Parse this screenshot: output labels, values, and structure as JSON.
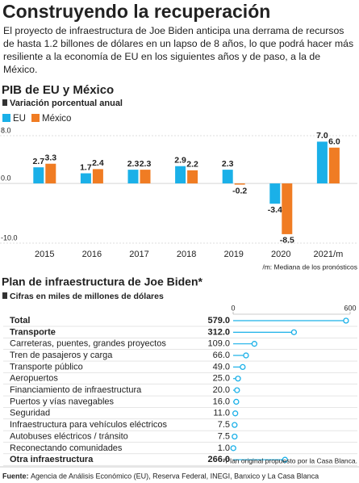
{
  "header": {
    "title": "Construyendo la recuperación",
    "text": "El proyecto de infraestructura de Joe Biden anticipa una derrama de recursos de hasta 1.2 billones de dólares en un lapso de 8 años, lo que podrá hacer más resiliente a la economía de EU en los siguientes años y de paso, a la de México."
  },
  "chart_data": [
    {
      "type": "bar",
      "title": "PIB de EU y México",
      "subtitle": "Variación porcentual anual",
      "categories": [
        "2015",
        "2016",
        "2017",
        "2018",
        "2019",
        "2020",
        "2021/m"
      ],
      "series": [
        {
          "name": "EU",
          "color": "#1ab0e8",
          "values": [
            2.7,
            1.7,
            2.3,
            2.9,
            2.3,
            -3.4,
            7
          ],
          "value_labels": [
            "2.7",
            "1.7",
            "2.3",
            "2.9",
            "2.3",
            "-3.4",
            "7.0"
          ]
        },
        {
          "name": "México",
          "color": "#f07c23",
          "values": [
            3.3,
            2.4,
            2.3,
            2.2,
            -0.2,
            -8.5,
            6
          ],
          "value_labels": [
            "3.3",
            "2.4",
            "2.3",
            "2.2",
            "-0.2",
            "-8.5",
            "6.0"
          ]
        }
      ],
      "ylim": [
        -10,
        8
      ],
      "yticks": [
        {
          "value": 8,
          "label": "8.0"
        },
        {
          "value": 0,
          "label": "0.0"
        },
        {
          "value": -10,
          "label": "-10.0"
        }
      ],
      "grid": true,
      "note": "/m: Mediana de los pronósticos"
    },
    {
      "type": "lollipop",
      "title": "Plan de infraestructura de Joe Biden*",
      "subtitle": "Cifras en miles de millones de dólares",
      "categories": [
        "Total",
        "Transporte",
        "Carreteras, puentes, grandes proyectos",
        "Tren de pasajeros y carga",
        "Transporte público",
        "Aeropuertos",
        "Financiamiento de infraestructura",
        "Puertos y vías navegables",
        "Seguridad",
        "Infraestructura para vehículos eléctricos",
        "Autobuses eléctricos / tránsito",
        "Reconectando comunidades",
        "Otra infraestructura"
      ],
      "values": [
        579,
        312,
        109,
        66,
        49,
        25,
        20,
        16,
        11,
        7.5,
        7.5,
        1,
        266
      ],
      "value_labels": [
        "579.0",
        "312.0",
        "109.0",
        "66.0",
        "49.0",
        "25.0",
        "20.0",
        "16.0",
        "11.0",
        "7.5",
        "7.5",
        "1.0",
        "266.0"
      ],
      "emphasized": [
        true,
        true,
        false,
        false,
        false,
        false,
        false,
        false,
        false,
        false,
        false,
        false,
        true
      ],
      "color": "#1ab0e8",
      "xlim": [
        0,
        600
      ],
      "xticks": [
        0,
        600
      ],
      "note": "*Plan original propuesto por la Casa Blanca."
    }
  ],
  "footer": {
    "source_label": "Fuente:",
    "source": "Agencia de Análisis Económico (EU), Reserva Federal, INEGI, Banxico y La Casa Blanca"
  }
}
